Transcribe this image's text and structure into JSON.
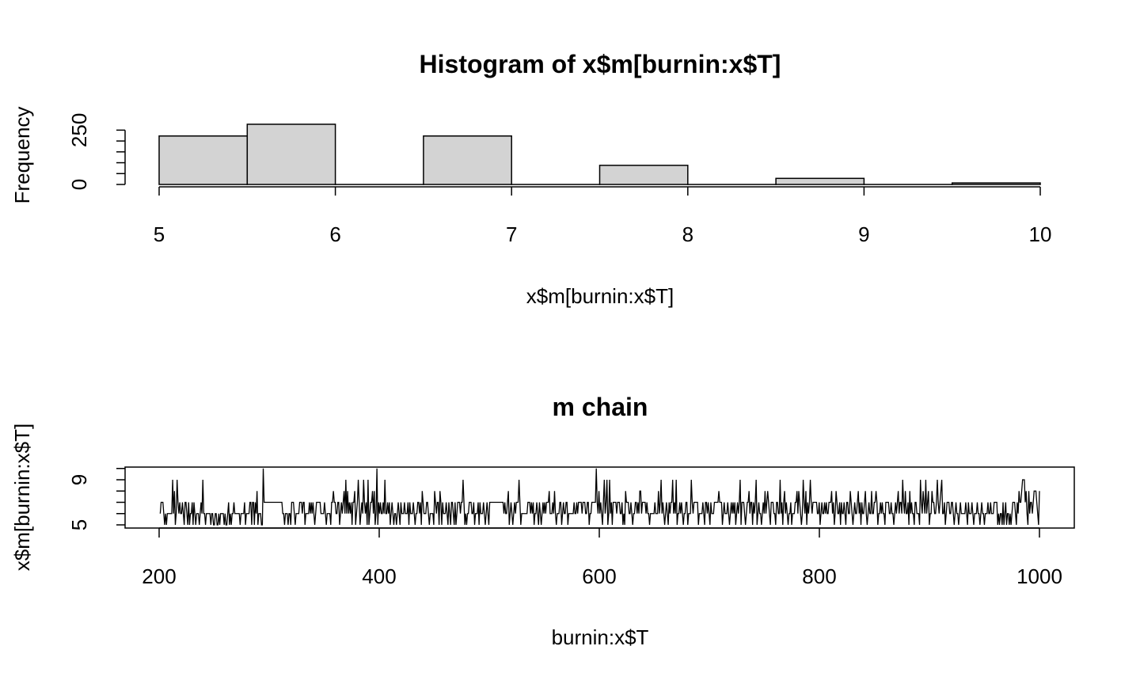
{
  "chart_data": [
    {
      "type": "bar",
      "title": "Histogram of x$m[burnin:x$T]",
      "xlabel": "x$m[burnin:x$T]",
      "ylabel": "Frequency",
      "bins": [
        [
          5,
          5.5
        ],
        [
          5.5,
          6
        ],
        [
          6,
          6.5
        ],
        [
          6.5,
          7
        ],
        [
          7,
          7.5
        ],
        [
          7.5,
          8
        ],
        [
          8,
          8.5
        ],
        [
          8.5,
          9
        ],
        [
          9,
          9.5
        ],
        [
          9.5,
          10
        ]
      ],
      "values": [
        223,
        277,
        0,
        223,
        0,
        88,
        0,
        28,
        0,
        7
      ],
      "xticks": [
        "5",
        "6",
        "7",
        "8",
        "9",
        "10"
      ],
      "yticks": [
        "0",
        "250"
      ],
      "xlim": [
        5,
        10
      ],
      "ylim": [
        0,
        280
      ],
      "bar_color": "#d3d3d3"
    },
    {
      "type": "line",
      "title": "m chain",
      "xlabel": "burnin:x$T",
      "ylabel": "x$m[burnin:x$T]",
      "xlim": [
        200,
        1000
      ],
      "ylim": [
        5,
        10
      ],
      "xticks": [
        "200",
        "400",
        "600",
        "800",
        "1000"
      ],
      "yticks": [
        "5",
        "9"
      ],
      "x_start": 201,
      "values": [
        6,
        7,
        7,
        7,
        6,
        5,
        6,
        5,
        6,
        6,
        6,
        6,
        6,
        6,
        9,
        6,
        8,
        5,
        6,
        9,
        7,
        6,
        7,
        6,
        6,
        7,
        6,
        5,
        7,
        7,
        6,
        5,
        7,
        5,
        6,
        6,
        7,
        5,
        7,
        6,
        5,
        6,
        6,
        6,
        5,
        6,
        7,
        6,
        9,
        6,
        6,
        5,
        6,
        6,
        6,
        6,
        6,
        5,
        6,
        6,
        5,
        5,
        6,
        6,
        5,
        5,
        6,
        5,
        6,
        6,
        6,
        6,
        5,
        6,
        5,
        5,
        6,
        7,
        5,
        6,
        5,
        6,
        6,
        7,
        6,
        6,
        6,
        6,
        6,
        6,
        5,
        6,
        6,
        6,
        6,
        7,
        5,
        6,
        6,
        6,
        6,
        7,
        7,
        5,
        7,
        7,
        5,
        7,
        6,
        8,
        5,
        6,
        6,
        6,
        5,
        5,
        10,
        7,
        7,
        7,
        7,
        7,
        7,
        7,
        7,
        7,
        7,
        7,
        7,
        7,
        7,
        7,
        7,
        7,
        7,
        7,
        7,
        7,
        6,
        6,
        5,
        6,
        6,
        6,
        5,
        6,
        6,
        5,
        7,
        7,
        7,
        6,
        5,
        6,
        6,
        6,
        6,
        7,
        7,
        7,
        6,
        7,
        7,
        5,
        6,
        6,
        6,
        6,
        7,
        6,
        7,
        6,
        7,
        6,
        5,
        6,
        7,
        7,
        7,
        7,
        7,
        6,
        6,
        6,
        6,
        7,
        6,
        5,
        6,
        6,
        6,
        6,
        5,
        7,
        7,
        8,
        7,
        7,
        6,
        6,
        7,
        7,
        5,
        6,
        7,
        6,
        7,
        8,
        6,
        9,
        6,
        8,
        6,
        7,
        6,
        7,
        5,
        7,
        7,
        8,
        5,
        6,
        7,
        9,
        7,
        5,
        6,
        7,
        6,
        9,
        7,
        6,
        7,
        5,
        9,
        5,
        6,
        7,
        7,
        8,
        6,
        8,
        5,
        6,
        10,
        5,
        7,
        6,
        7,
        6,
        6,
        7,
        6,
        9,
        6,
        6,
        7,
        6,
        7,
        5,
        6,
        7,
        6,
        5,
        6,
        6,
        5,
        6,
        7,
        6,
        5,
        7,
        6,
        6,
        6,
        7,
        6,
        6,
        6,
        7,
        5,
        7,
        6,
        6,
        6,
        7,
        6,
        5,
        6,
        6,
        7,
        7,
        6,
        7,
        5,
        8,
        7,
        6,
        6,
        6,
        7,
        7,
        6,
        5,
        6,
        6,
        6,
        6,
        5,
        8,
        7,
        6,
        7,
        7,
        5,
        8,
        7,
        5,
        7,
        6,
        6,
        6,
        7,
        6,
        5,
        7,
        6,
        5,
        7,
        7,
        6,
        5,
        7,
        5,
        6,
        7,
        7,
        7,
        6,
        7,
        7,
        9,
        7,
        5,
        6,
        5,
        6,
        6,
        7,
        7,
        7,
        6,
        6,
        7,
        5,
        6,
        6,
        6,
        7,
        5,
        7,
        6,
        6,
        6,
        7,
        6,
        5,
        6,
        7,
        6,
        5,
        7,
        7,
        7,
        7,
        7,
        7,
        7,
        7,
        7,
        7,
        7,
        7,
        7,
        7,
        7,
        7,
        6,
        7,
        6,
        6,
        7,
        8,
        5,
        6,
        7,
        6,
        5,
        6,
        7,
        6,
        7,
        7,
        7,
        9,
        7,
        5,
        6,
        6,
        6,
        6,
        6,
        6,
        6,
        7,
        7,
        7,
        6,
        7,
        6,
        7,
        5,
        6,
        6,
        7,
        6,
        5,
        7,
        6,
        5,
        6,
        7,
        6,
        7,
        6,
        7,
        7,
        7,
        8,
        6,
        6,
        6,
        7,
        6,
        8,
        6,
        5,
        6,
        6,
        6,
        7,
        7,
        5,
        6,
        7,
        6,
        6,
        7,
        7,
        5,
        6,
        6,
        6,
        6,
        6,
        6,
        7,
        6,
        6,
        7,
        6,
        7,
        7,
        7,
        7,
        6,
        7,
        7,
        7,
        6,
        6,
        7,
        7,
        5,
        6,
        6,
        7,
        7,
        7,
        7,
        7,
        10,
        7,
        6,
        8,
        6,
        7,
        6,
        5,
        7,
        9,
        6,
        7,
        9,
        5,
        6,
        9,
        6,
        7,
        5,
        7,
        7,
        7,
        7,
        6,
        7,
        7,
        7,
        6,
        6,
        7,
        5,
        6,
        5,
        8,
        7,
        7,
        7,
        6,
        6,
        7,
        6,
        5,
        6,
        6,
        7,
        7,
        6,
        7,
        6,
        8,
        8,
        6,
        7,
        7,
        7,
        7,
        6,
        7,
        6,
        6,
        5,
        6,
        6,
        6,
        6,
        6,
        7,
        6,
        6,
        6,
        8,
        6,
        7,
        9,
        6,
        7,
        6,
        5,
        6,
        7,
        6,
        5,
        7,
        6,
        7,
        7,
        9,
        6,
        7,
        6,
        9,
        5,
        6,
        6,
        7,
        6,
        7,
        6,
        5,
        6,
        6,
        7,
        7,
        5,
        6,
        6,
        6,
        9,
        7,
        6,
        7,
        7,
        7,
        7,
        7,
        5,
        6,
        6,
        6,
        6,
        7,
        6,
        5,
        7,
        7,
        6,
        7,
        6,
        5,
        7,
        6,
        6,
        6,
        7,
        7,
        7,
        7,
        7,
        8,
        7,
        7,
        7,
        5,
        6,
        7,
        6,
        6,
        6,
        7,
        6,
        5,
        6,
        7,
        6,
        7,
        6,
        7,
        5,
        6,
        7,
        6,
        7,
        9,
        5,
        7,
        7,
        7,
        6,
        5,
        6,
        7,
        7,
        8,
        6,
        7,
        7,
        5,
        7,
        6,
        7,
        9,
        5,
        6,
        7,
        6,
        6,
        5,
        6,
        7,
        6,
        8,
        6,
        7,
        8,
        7,
        6,
        5,
        7,
        7,
        7,
        6,
        6,
        5,
        7,
        7,
        6,
        6,
        9,
        6,
        7,
        5,
        7,
        8,
        6,
        7,
        6,
        5,
        6,
        6,
        7,
        5,
        6,
        6,
        6,
        7,
        7,
        8,
        6,
        8,
        7,
        6,
        5,
        6,
        9,
        7,
        6,
        8,
        5,
        7,
        6,
        7,
        9,
        7,
        6,
        7,
        7,
        7,
        7,
        7,
        6,
        6,
        7,
        5,
        6,
        7,
        6,
        6,
        7,
        6,
        7,
        6,
        6,
        7,
        7,
        7,
        8,
        6,
        7,
        5,
        6,
        8,
        7,
        6,
        6,
        7,
        5,
        7,
        6,
        6,
        7,
        6,
        5,
        7,
        7,
        6,
        6,
        8,
        7,
        6,
        5,
        6,
        7,
        6,
        6,
        7,
        8,
        6,
        7,
        5,
        7,
        6,
        6,
        7,
        8,
        6,
        5,
        6,
        7,
        6,
        6,
        8,
        6,
        6,
        7,
        7,
        8,
        7,
        5,
        6,
        6,
        7,
        6,
        7,
        6,
        6,
        5,
        7,
        7,
        7,
        7,
        6,
        6,
        7,
        6,
        6,
        5,
        6,
        7,
        6,
        7,
        8,
        6,
        7,
        7,
        6,
        9,
        7,
        6,
        8,
        6,
        6,
        7,
        5,
        8,
        6,
        7,
        6,
        6,
        5,
        7,
        7,
        6,
        6,
        6,
        5,
        9,
        7,
        6,
        8,
        7,
        6,
        9,
        6,
        7,
        8,
        5,
        6,
        6,
        8,
        7,
        7,
        6,
        6,
        7,
        9,
        7,
        6,
        7,
        8,
        9,
        6,
        6,
        7,
        5,
        6,
        7,
        7,
        7,
        6,
        6,
        7,
        7,
        6,
        5,
        6,
        7,
        6,
        6,
        5,
        6,
        7,
        6,
        6,
        6,
        6,
        6,
        7,
        6,
        5,
        7,
        6,
        6,
        6,
        7,
        6,
        5,
        6,
        6,
        6,
        7,
        6,
        6,
        5,
        6,
        7,
        6,
        6,
        5,
        6,
        6,
        6,
        7,
        6,
        6,
        7,
        6,
        6,
        6,
        7,
        7,
        7,
        7,
        5,
        6,
        5,
        6,
        6,
        5,
        7,
        5,
        6,
        7,
        5,
        6,
        6,
        5,
        6,
        5,
        6,
        7,
        7,
        7,
        6,
        5,
        7,
        6,
        8,
        7,
        7,
        8,
        9,
        9,
        9,
        7,
        8,
        6,
        5,
        8,
        6,
        7,
        7,
        6,
        7,
        8,
        8,
        8,
        7,
        6,
        5,
        8
      ]
    }
  ]
}
